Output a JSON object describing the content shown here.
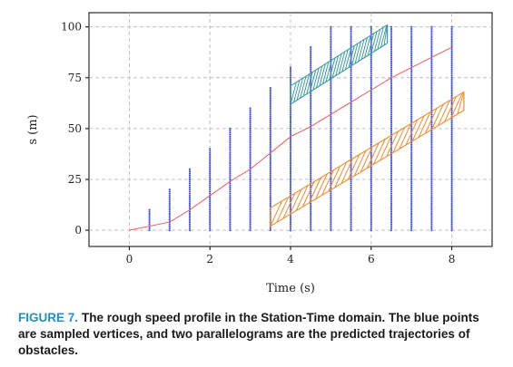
{
  "chart_data": {
    "type": "scatter",
    "xlabel": "Time (s)",
    "ylabel": "s (m)",
    "xlim": [
      -1,
      9
    ],
    "ylim": [
      -8,
      107
    ],
    "xticks": [
      0,
      2,
      4,
      6,
      8
    ],
    "yticks": [
      0,
      25,
      50,
      75,
      100
    ],
    "grid": true,
    "colors": {
      "vertices": "#4455dd",
      "profile": "#e85a5a",
      "obstacle_upper": "#3e9aa0",
      "obstacle_lower": "#f08a28"
    },
    "sampled_vertices": {
      "t_step": 0.5,
      "s_step": 1,
      "columns": [
        {
          "t": 0.5,
          "s_max": 10
        },
        {
          "t": 1.0,
          "s_max": 20
        },
        {
          "t": 1.5,
          "s_max": 30
        },
        {
          "t": 2.0,
          "s_max": 40
        },
        {
          "t": 2.5,
          "s_max": 50
        },
        {
          "t": 3.0,
          "s_max": 60
        },
        {
          "t": 3.5,
          "s_max": 70
        },
        {
          "t": 4.0,
          "s_max": 80
        },
        {
          "t": 4.5,
          "s_max": 90
        },
        {
          "t": 5.0,
          "s_max": 100
        },
        {
          "t": 5.5,
          "s_max": 100
        },
        {
          "t": 6.0,
          "s_max": 100
        },
        {
          "t": 6.5,
          "s_max": 100
        },
        {
          "t": 7.0,
          "s_max": 100
        },
        {
          "t": 7.5,
          "s_max": 100
        },
        {
          "t": 8.0,
          "s_max": 100
        }
      ]
    },
    "speed_profile": {
      "t": [
        0,
        0.5,
        1.0,
        1.5,
        2.0,
        2.5,
        3.0,
        3.5,
        4.0,
        4.5,
        5.0,
        5.5,
        6.0,
        6.5,
        7.0,
        7.5,
        8.0
      ],
      "s": [
        0,
        2,
        4,
        10,
        17,
        24,
        30,
        38,
        46,
        51,
        57,
        63,
        69,
        75,
        80,
        85,
        90
      ]
    },
    "obstacles": [
      {
        "name": "upper",
        "corners": [
          [
            4.0,
            62
          ],
          [
            4.0,
            71
          ],
          [
            6.4,
            101
          ],
          [
            6.4,
            92
          ]
        ]
      },
      {
        "name": "lower",
        "corners": [
          [
            3.5,
            2
          ],
          [
            3.5,
            11
          ],
          [
            8.3,
            68
          ],
          [
            8.3,
            59
          ]
        ]
      }
    ]
  },
  "caption": {
    "label": "FIGURE 7.",
    "text": "The rough speed profile in the Station-Time domain. The blue points are sampled vertices, and two parallelograms are the predicted trajectories of obstacles."
  }
}
